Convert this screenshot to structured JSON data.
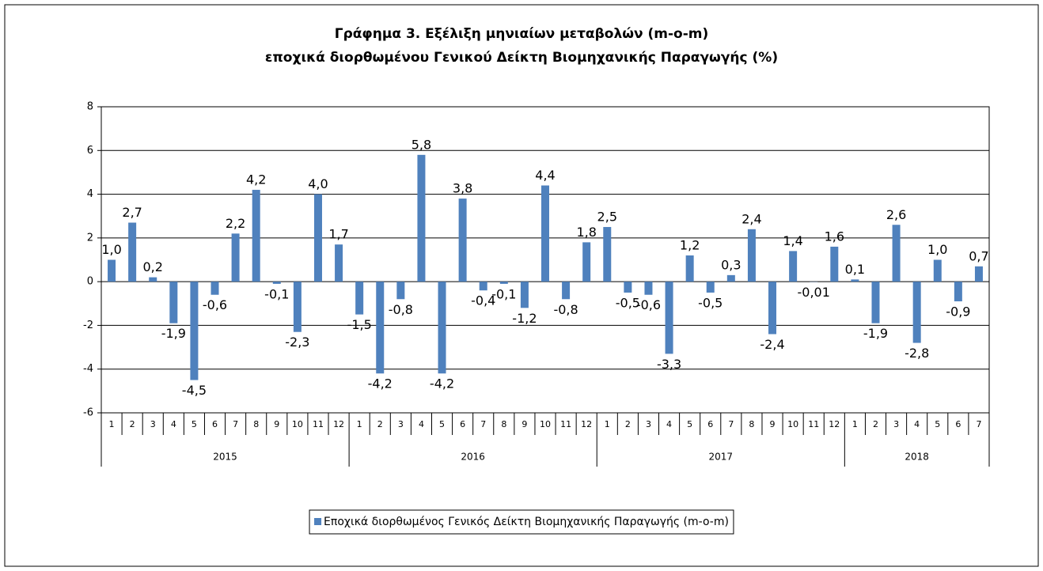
{
  "chart_data": {
    "type": "bar",
    "title": [
      "Γράφημα 3. Εξέλιξη μηνιαίων μεταβολών (m-o-m)",
      "εποχικά διορθωμένου Γενικού Δείκτη Βιομηχανικής Παραγωγής (%)"
    ],
    "categories": [
      "1",
      "2",
      "3",
      "4",
      "5",
      "6",
      "7",
      "8",
      "9",
      "10",
      "11",
      "12",
      "1",
      "2",
      "3",
      "4",
      "5",
      "6",
      "7",
      "8",
      "9",
      "10",
      "11",
      "12",
      "1",
      "2",
      "3",
      "4",
      "5",
      "6",
      "7",
      "8",
      "9",
      "10",
      "11",
      "12",
      "1",
      "2",
      "3",
      "4",
      "5",
      "6",
      "7"
    ],
    "years": [
      "2015",
      "2016",
      "2017",
      "2018"
    ],
    "series": [
      {
        "name": "Εποχικά διορθωμένος Γενικός Δείκτη Βιομηχανικής Παραγωγής (m-o-m)",
        "color": "#4f81bd",
        "values": [
          1.0,
          2.7,
          0.2,
          -1.9,
          -4.5,
          -0.6,
          2.2,
          4.2,
          -0.1,
          -2.3,
          4.0,
          1.7,
          -1.5,
          -4.2,
          -0.8,
          5.8,
          -4.2,
          3.8,
          -0.4,
          -0.1,
          -1.2,
          4.4,
          -0.8,
          1.8,
          2.5,
          -0.5,
          -0.6,
          -3.3,
          1.2,
          -0.5,
          0.3,
          2.4,
          -2.4,
          1.4,
          -0.01,
          1.6,
          0.1,
          -1.9,
          2.6,
          -2.8,
          1.0,
          -0.9,
          0.7
        ],
        "value_labels": [
          "1,0",
          "2,7",
          "0,2",
          "-1,9",
          "-4,5",
          "-0,6",
          "2,2",
          "4,2",
          "-0,1",
          "-2,3",
          "4,0",
          "1,7",
          "-1,5",
          "-4,2",
          "-0,8",
          "5,8",
          "-4,2",
          "3,8",
          "-0,4",
          "-0,1",
          "-1,2",
          "4,4",
          "-0,8",
          "1,8",
          "2,5",
          "-0,5",
          "-0,6",
          "-3,3",
          "1,2",
          "-0,5",
          "0,3",
          "2,4",
          "-2,4",
          "1,4",
          "-0,01",
          "1,6",
          "0,1",
          "-1,9",
          "2,6",
          "-2,8",
          "1,0",
          "-0,9",
          "0,7"
        ]
      }
    ],
    "ylim": [
      -6,
      8
    ],
    "yticks": [
      -6,
      -4,
      -2,
      0,
      2,
      4,
      6,
      8
    ],
    "grid": true,
    "legend": "bottom"
  }
}
